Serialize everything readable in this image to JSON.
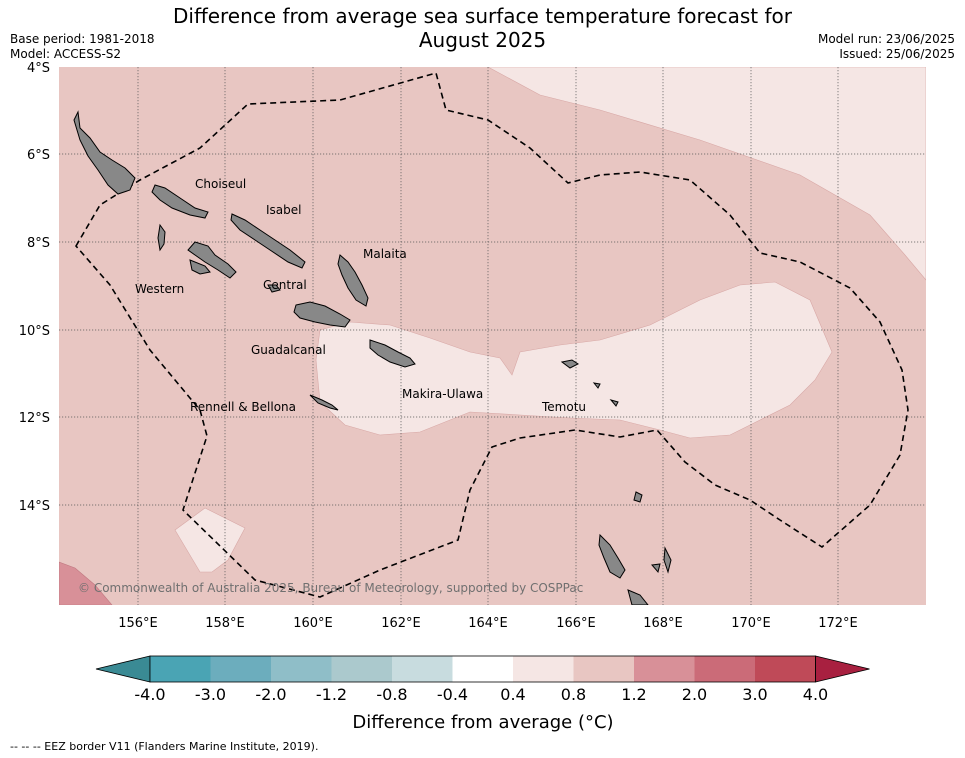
{
  "header": {
    "title_line1": "Difference from average sea surface temperature forecast for",
    "title_line2": "August 2025",
    "base_period": "Base period: 1981-2018",
    "model": "Model: ACCESS-S2",
    "model_run": "Model run: 23/06/2025",
    "issued": "Issued: 25/06/2025"
  },
  "map": {
    "lat_ticks": [
      "4°S",
      "6°S",
      "8°S",
      "10°S",
      "12°S",
      "14°S"
    ],
    "lon_ticks": [
      "156°E",
      "158°E",
      "160°E",
      "162°E",
      "164°E",
      "166°E",
      "168°E",
      "170°E",
      "172°E"
    ],
    "place_labels": [
      "Choiseul",
      "Isabel",
      "Malaita",
      "Western",
      "Central",
      "Guadalcanal",
      "Makira-Ulawa",
      "Rennell & Bellona",
      "Temotu"
    ],
    "copyright": "© Commonwealth of Australia 2025, Bureau of Meteorology, supported by COSPPac"
  },
  "colorbar": {
    "ticks": [
      "-4.0",
      "-3.0",
      "-2.0",
      "-1.2",
      "-0.8",
      "-0.4",
      "0.4",
      "0.8",
      "1.2",
      "2.0",
      "3.0",
      "4.0"
    ],
    "colors": [
      "#3a8a94",
      "#4aa4b4",
      "#6cadbd",
      "#8fbec8",
      "#abc9cd",
      "#c8dcdf",
      "#ffffff",
      "#f5e6e4",
      "#e8c6c2",
      "#d89098",
      "#cb6b78",
      "#bf4a58",
      "#a82040"
    ],
    "label": "Difference from average (°C)"
  },
  "footer": {
    "legend": "--  --  -- EEZ border V11 (Flanders Marine Institute, 2019)."
  }
}
